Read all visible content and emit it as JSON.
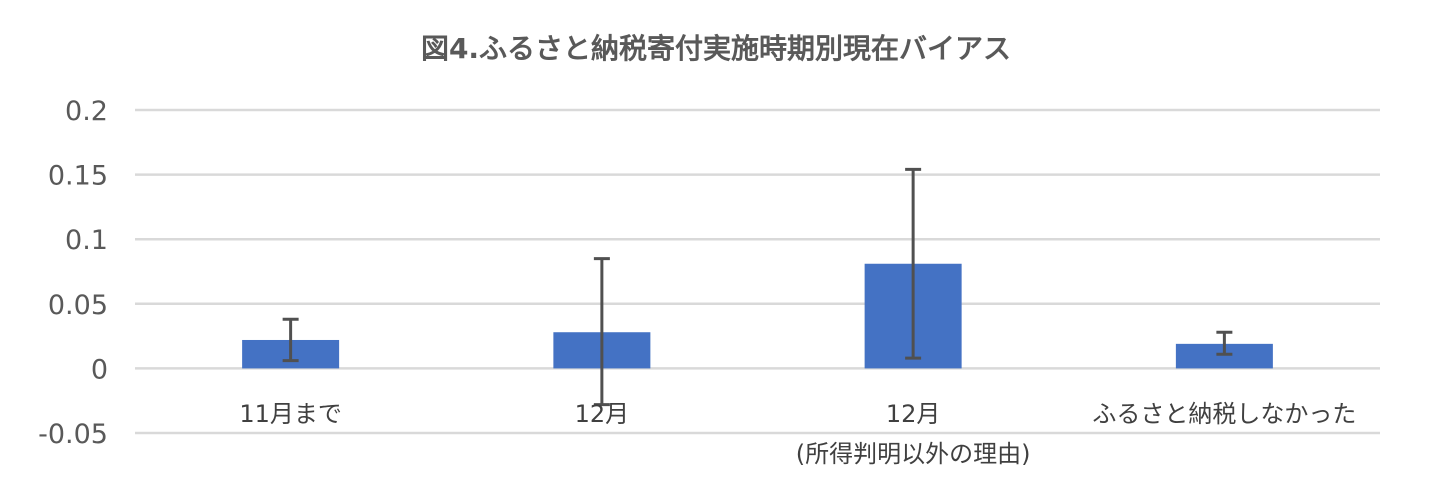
{
  "chart_data": {
    "type": "bar",
    "title": "図4.ふるさと納税寄付実施時期別現在バイアス",
    "xlabel": "",
    "ylabel": "",
    "ylim": [
      -0.05,
      0.2
    ],
    "yticks": [
      0.2,
      0.15,
      0.1,
      0.05,
      0,
      -0.05
    ],
    "ytick_labels": [
      "0.2",
      "0.15",
      "0.1",
      "0.05",
      "0",
      "-0.05"
    ],
    "grid": true,
    "legend": "none",
    "bar_color": "#4472c4",
    "errorbar_color": "#505050",
    "categories": [
      [
        "11月まで"
      ],
      [
        "12月"
      ],
      [
        "12月",
        "(所得判明以外の理由)"
      ],
      [
        "ふるさと納税しなかった"
      ]
    ],
    "values": [
      0.022,
      0.028,
      0.081,
      0.019
    ],
    "error_low": [
      0.006,
      -0.028,
      0.008,
      0.011
    ],
    "error_high": [
      0.038,
      0.085,
      0.154,
      0.028
    ]
  }
}
